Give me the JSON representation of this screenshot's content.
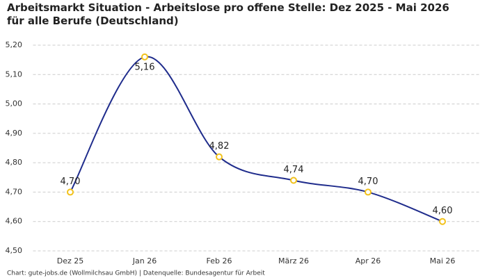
{
  "chart_data": {
    "type": "line",
    "title": "Arbeitsmarkt Situation - Arbeitslose pro offene Stelle: Dez 2025 - Mai 2026 für alle Berufe (Deutschland)",
    "categories": [
      "Dez 25",
      "Jan 26",
      "Feb 26",
      "März 26",
      "Apr 26",
      "Mai 26"
    ],
    "values": [
      4.7,
      5.16,
      4.82,
      4.74,
      4.7,
      4.6
    ],
    "value_labels": [
      "4,70",
      "5,16",
      "4,82",
      "4,74",
      "4,70",
      "4,60"
    ],
    "color": "#1f2c8c",
    "marker_color": "#f2c21b",
    "ylim": [
      4.5,
      5.2
    ],
    "yticks": [
      {
        "value": 4.5,
        "label": "4,50"
      },
      {
        "value": 4.6,
        "label": "4,60"
      },
      {
        "value": 4.7,
        "label": "4,70"
      },
      {
        "value": 4.8,
        "label": "4,80"
      },
      {
        "value": 4.9,
        "label": "4,90"
      },
      {
        "value": 5.0,
        "label": "5,00"
      },
      {
        "value": 5.1,
        "label": "5,10"
      },
      {
        "value": 5.2,
        "label": "5,20"
      }
    ],
    "grid": true,
    "source": "Chart: gute-jobs.de (Wollmilchsau GmbH) | Datenquelle: Bundesagentur für Arbeit"
  }
}
